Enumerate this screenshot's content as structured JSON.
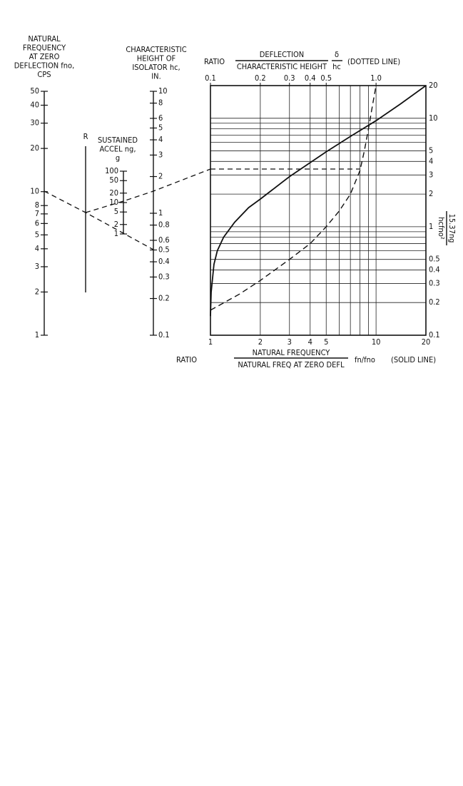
{
  "chart_data": {
    "type": "line",
    "x_label": {
      "prefix": "RATIO",
      "numerator": "NATURAL FREQUENCY",
      "denominator": "NATURAL FREQ AT ZERO DEFL",
      "symbol": "fn/fno",
      "note": "(SOLID LINE)"
    },
    "x2_label": {
      "prefix": "RATIO",
      "numerator": "DEFLECTION",
      "denominator": "CHARACTERISTIC HEIGHT",
      "symbol_numerator": "δ",
      "symbol_denominator": "hc",
      "note": "(DOTTED LINE)"
    },
    "y_label": {
      "numerator": "15.37ng",
      "denominator": "hcfno²"
    },
    "xlog": true,
    "ylog": true,
    "grid": true,
    "xlim": [
      1,
      20
    ],
    "x2lim": [
      0.1,
      2
    ],
    "ylim": [
      0.1,
      20
    ],
    "xticks": [
      1,
      2,
      3,
      4,
      5,
      10,
      20
    ],
    "xminor": [
      6,
      7,
      8,
      9
    ],
    "x2ticks": [
      0.1,
      0.2,
      0.3,
      0.4,
      0.5,
      {
        "value": 1,
        "label": "1.0"
      }
    ],
    "yticks": [
      0.1,
      0.2,
      0.3,
      0.4,
      0.5,
      1,
      2,
      3,
      4,
      5,
      10,
      20
    ],
    "yminor": [
      0.6,
      0.7,
      0.8,
      0.9,
      6,
      7,
      8,
      9
    ],
    "series": [
      {
        "color": "#111111",
        "style": "solid",
        "axis": "x",
        "x": [
          1,
          1.01,
          1.05,
          1.1,
          1.2,
          1.4,
          1.7,
          2,
          3,
          4,
          5,
          7,
          10,
          14,
          20
        ],
        "values": [
          0.15,
          0.25,
          0.45,
          0.6,
          0.8,
          1.1,
          1.5,
          1.8,
          2.9,
          3.9,
          4.9,
          6.8,
          9.5,
          13.5,
          20
        ]
      },
      {
        "color": "#111111",
        "style": "dashed",
        "axis": "x2",
        "x": [
          0.1,
          0.15,
          0.2,
          0.3,
          0.4,
          0.5,
          0.6,
          0.7,
          0.8,
          0.85,
          0.9,
          0.95,
          1.0
        ],
        "values": [
          0.17,
          0.24,
          0.32,
          0.5,
          0.7,
          1.0,
          1.4,
          2,
          3.3,
          5,
          8,
          13,
          20
        ]
      }
    ]
  },
  "nomogram": {
    "r_label": "R",
    "scales": [
      {
        "title": [
          "NATURAL",
          "FREQUENCY",
          "AT ZERO",
          "DEFLECTION fno,",
          "CPS"
        ],
        "ticks": [
          "50",
          "40",
          "30",
          "20",
          "10",
          "8",
          "7",
          "6",
          "5",
          "4",
          "3",
          "2",
          "1"
        ]
      },
      {
        "title": [
          "CHARACTERISTIC",
          "HEIGHT OF",
          "ISOLATOR hc,",
          "IN."
        ],
        "ticks": [
          "10",
          "8",
          "6",
          "5",
          "4",
          "3",
          "2",
          "1",
          "0.8",
          "0.6",
          "0.5",
          "0.4",
          "0.3",
          "0.2",
          "0.1"
        ]
      },
      {
        "title": [
          "SUSTAINED",
          "ACCEL ng,",
          "g"
        ],
        "ticks": [
          "100",
          "50",
          "20",
          "10",
          "5",
          "2",
          "1"
        ]
      }
    ]
  }
}
